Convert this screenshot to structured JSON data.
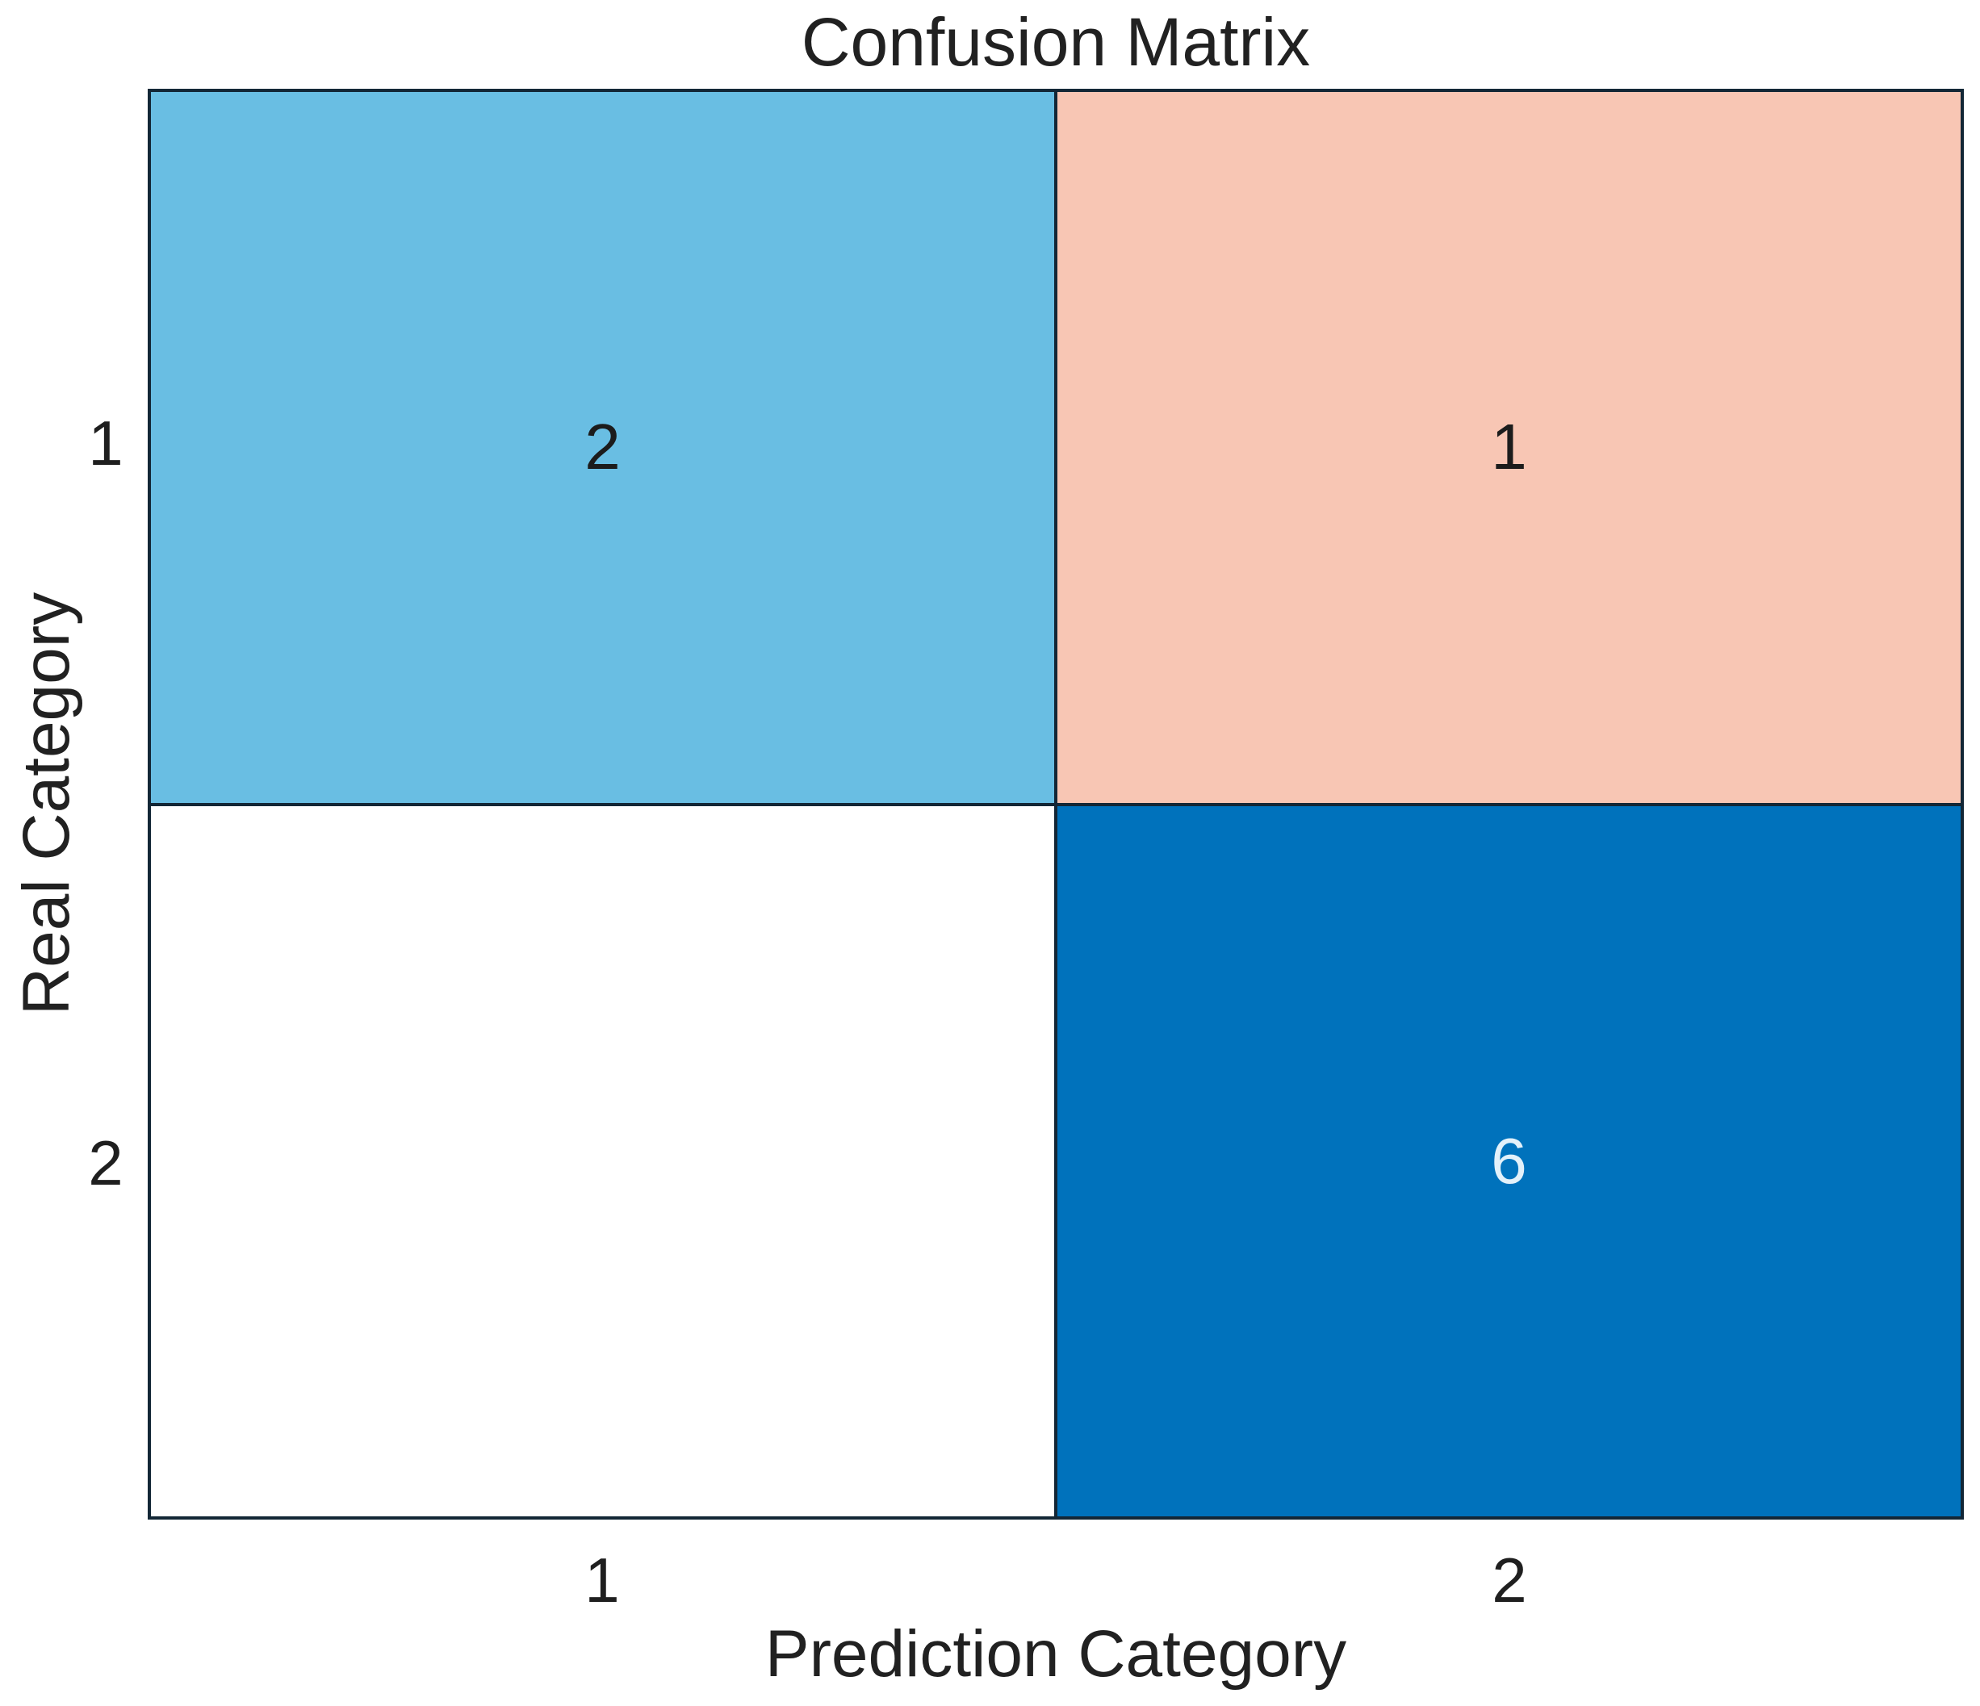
{
  "figure": {
    "background": "#ffffff",
    "grid_line_color": "#132736",
    "text_color": "#212121"
  },
  "chart_data": {
    "type": "heatmap",
    "title": "Confusion Matrix",
    "xlabel": "Prediction Category",
    "ylabel": "Real Category",
    "x_categories": [
      "1",
      "2"
    ],
    "y_categories": [
      "1",
      "2"
    ],
    "matrix": [
      [
        2,
        1
      ],
      [
        null,
        6
      ]
    ],
    "legend_position": "none",
    "grid": "cell-borders",
    "cells": [
      {
        "row": "1",
        "col": "1",
        "label": "2",
        "bg": "#69bee3",
        "fg": "#1c1c1c"
      },
      {
        "row": "1",
        "col": "2",
        "label": "1",
        "bg": "#f8c6b4",
        "fg": "#1c1c1c"
      },
      {
        "row": "2",
        "col": "1",
        "label": "",
        "bg": "#ffffff",
        "fg": "#1c1c1c"
      },
      {
        "row": "2",
        "col": "2",
        "label": "6",
        "bg": "#0072bc",
        "fg": "#e3f1fa"
      }
    ]
  }
}
